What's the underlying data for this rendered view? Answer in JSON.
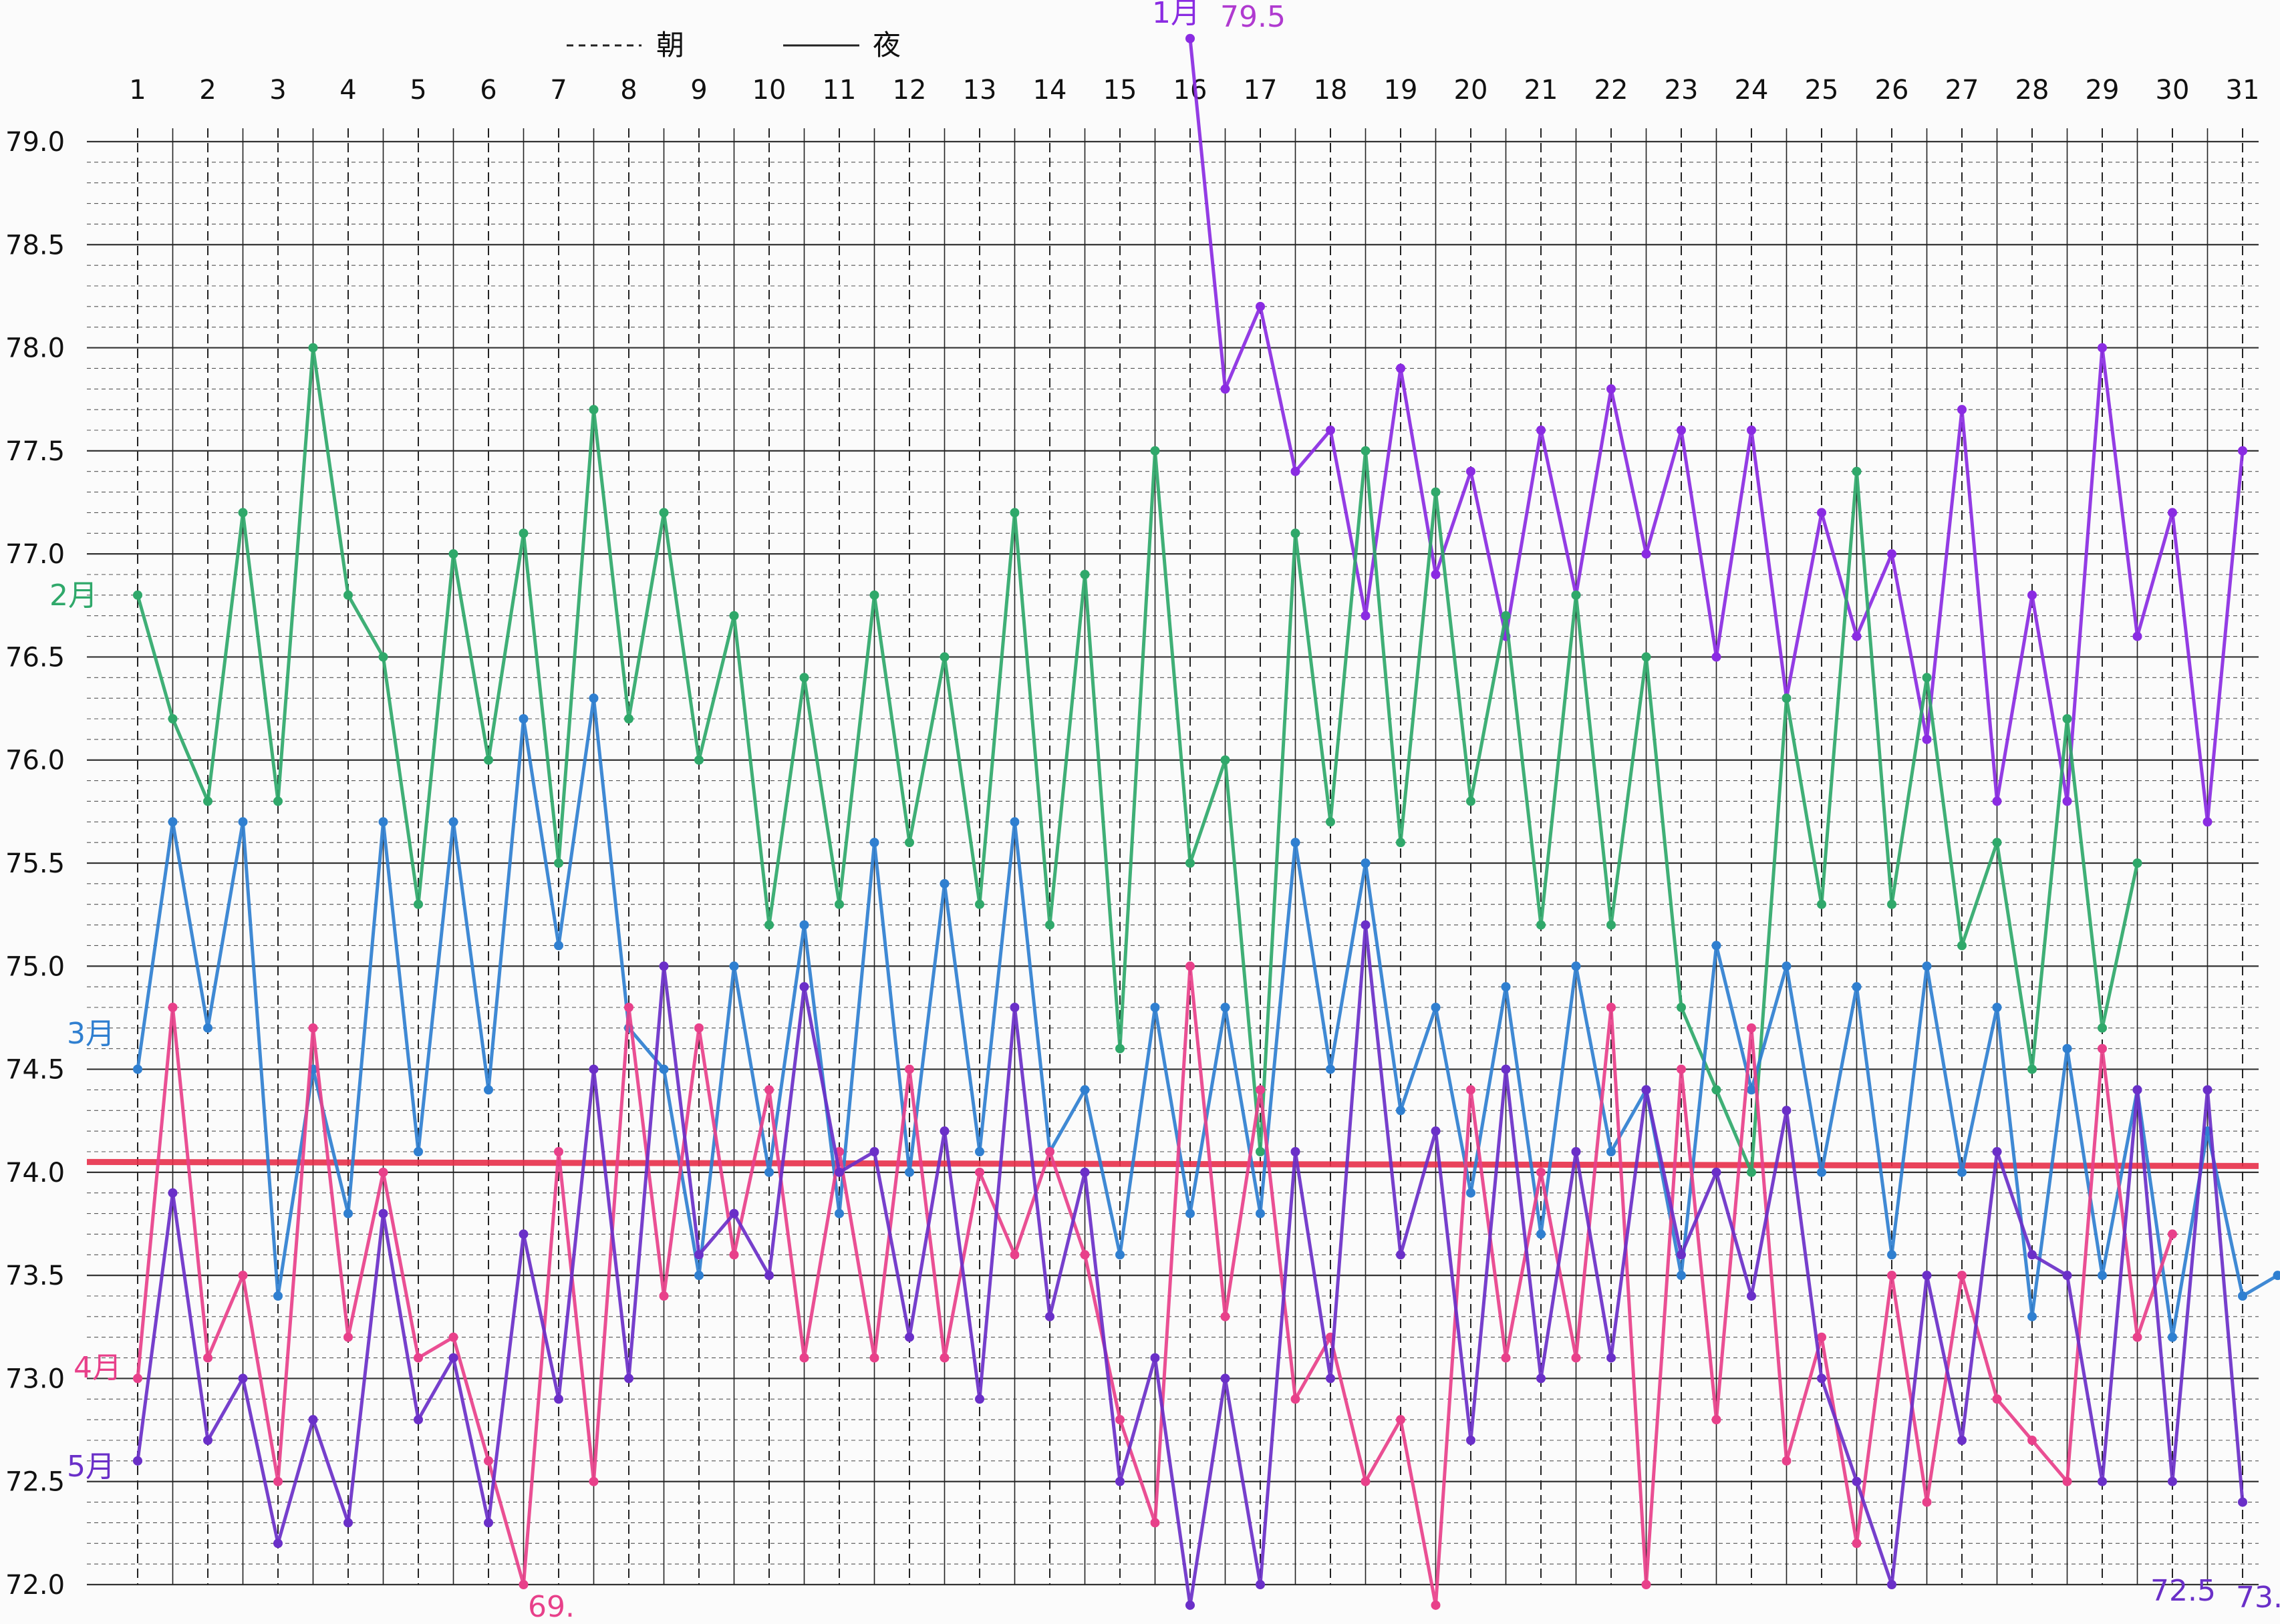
{
  "chart_data": {
    "type": "line",
    "title": "",
    "xlabel": "",
    "ylabel": "",
    "legend": {
      "placement": "top-center",
      "entries": [
        {
          "label": "朝",
          "style": "dashed"
        },
        {
          "label": "夜",
          "style": "solid"
        }
      ]
    },
    "days": [
      "1",
      "2",
      "3",
      "4",
      "5",
      "6",
      "7",
      "8",
      "9",
      "10",
      "11",
      "12",
      "13",
      "14",
      "15",
      "16",
      "17",
      "18",
      "19",
      "20",
      "21",
      "22",
      "23",
      "24",
      "25",
      "26",
      "27",
      "28",
      "29",
      "30",
      "31"
    ],
    "y_ticks": [
      "72.0",
      "72.5",
      "73.0",
      "73.5",
      "74.0",
      "74.5",
      "75.0",
      "75.5",
      "76.0",
      "76.5",
      "77.0",
      "77.5",
      "78.0",
      "78.5",
      "79.0"
    ],
    "ylim": [
      72.0,
      79.0
    ],
    "x_unit": "day (points at 朝 / 夜 half-day steps)",
    "reference_line": {
      "value": 74.05,
      "color": "#e8304a"
    },
    "grid": true,
    "series": [
      {
        "name": "1月",
        "color": "#8a2be2",
        "start_x": 16.0,
        "values": [
          79.5,
          77.8,
          78.2,
          77.4,
          77.6,
          76.7,
          77.9,
          76.9,
          77.4,
          76.6,
          77.6,
          76.8,
          77.8,
          77.0,
          77.6,
          76.5,
          77.6,
          76.3,
          77.2,
          76.6,
          77.0,
          76.1,
          77.7,
          75.8,
          76.8,
          75.8,
          78.0,
          76.6,
          77.2,
          75.7,
          77.5
        ]
      },
      {
        "name": "2月",
        "color": "#2fa86a",
        "start_x": 1.0,
        "values": [
          76.8,
          76.2,
          75.8,
          77.2,
          75.8,
          78.0,
          76.8,
          76.5,
          75.3,
          77.0,
          76.0,
          77.1,
          75.5,
          77.7,
          76.2,
          77.2,
          76.0,
          76.7,
          75.2,
          76.4,
          75.3,
          76.8,
          75.6,
          76.5,
          75.3,
          77.2,
          75.2,
          76.9,
          74.6,
          77.5,
          75.5,
          76.0,
          74.1,
          77.1,
          75.7,
          77.5,
          75.6,
          77.3,
          75.8,
          76.7,
          75.2,
          76.8,
          75.2,
          76.5,
          74.8,
          74.4,
          74.0,
          76.3,
          75.3,
          77.4,
          75.3,
          76.4,
          75.1,
          75.6,
          74.5,
          76.2,
          74.7,
          75.5
        ]
      },
      {
        "name": "3月",
        "color": "#2f7fd0",
        "start_x": 1.0,
        "values": [
          74.5,
          75.7,
          74.7,
          75.7,
          73.4,
          74.5,
          73.8,
          75.7,
          74.1,
          75.7,
          74.4,
          76.2,
          75.1,
          76.3,
          74.7,
          74.5,
          73.5,
          75.0,
          74.0,
          75.2,
          73.8,
          75.6,
          74.0,
          75.4,
          74.1,
          75.7,
          74.1,
          74.4,
          73.6,
          74.8,
          73.8,
          74.8,
          73.8,
          75.6,
          74.5,
          75.5,
          74.3,
          74.8,
          73.9,
          74.9,
          73.7,
          75.0,
          74.1,
          74.4,
          73.5,
          75.1,
          74.4,
          75.0,
          74.0,
          74.9,
          73.6,
          75.0,
          74.0,
          74.8,
          73.3,
          74.6,
          73.5,
          74.4,
          73.2,
          74.2,
          73.4,
          73.5
        ]
      },
      {
        "name": "4月",
        "color": "#e8408a",
        "start_x": 1.0,
        "values": [
          73.0,
          74.8,
          73.1,
          73.5,
          72.5,
          74.7,
          73.2,
          74.0,
          73.1,
          73.2,
          72.6,
          72.0,
          74.1,
          72.5,
          74.8,
          73.4,
          74.7,
          73.6,
          74.4,
          73.1,
          74.1,
          73.1,
          74.5,
          73.1,
          74.0,
          73.6,
          74.1,
          73.6,
          72.8,
          72.3,
          75.0,
          73.3,
          74.4,
          72.9,
          73.2,
          72.5,
          72.8,
          71.9,
          74.4,
          73.1,
          74.0,
          73.1,
          74.8,
          72.0,
          74.5,
          72.8,
          74.7,
          72.6,
          73.2,
          72.2,
          73.5,
          72.4,
          73.5,
          72.9,
          72.7,
          72.5,
          74.6,
          73.2,
          73.7
        ]
      },
      {
        "name": "5月",
        "color": "#6a2fc8",
        "start_x": 1.0,
        "values": [
          72.6,
          73.9,
          72.7,
          73.0,
          72.2,
          72.8,
          72.3,
          73.8,
          72.8,
          73.1,
          72.3,
          73.7,
          72.9,
          74.5,
          73.0,
          75.0,
          73.6,
          73.8,
          73.5,
          74.9,
          74.0,
          74.1,
          73.2,
          74.2,
          72.9,
          74.8,
          73.3,
          74.0,
          72.5,
          73.1,
          71.9,
          73.0,
          72.0,
          74.1,
          73.0,
          75.2,
          73.6,
          74.2,
          72.7,
          74.5,
          73.0,
          74.1,
          73.1,
          74.4,
          73.6,
          74.0,
          73.4,
          74.3,
          73.0,
          72.5,
          72.0,
          73.5,
          72.7,
          74.1,
          73.6,
          73.5,
          72.5,
          74.4,
          72.5,
          74.4,
          72.4
        ]
      }
    ],
    "annotations": [
      {
        "text": "1月",
        "color": "#8a2be2"
      },
      {
        "text": "79.5",
        "color": "#b03ad0"
      },
      {
        "text": "2月",
        "color": "#2fa86a"
      },
      {
        "text": "3月",
        "color": "#2f7fd0"
      },
      {
        "text": "4月",
        "color": "#e8408a"
      },
      {
        "text": "5月",
        "color": "#6a2fc8"
      },
      {
        "text": "69.",
        "color": "#e8408a"
      },
      {
        "text": "72.5",
        "color": "#6a2fc8"
      },
      {
        "text": "73.",
        "color": "#6a2fc8"
      }
    ]
  }
}
